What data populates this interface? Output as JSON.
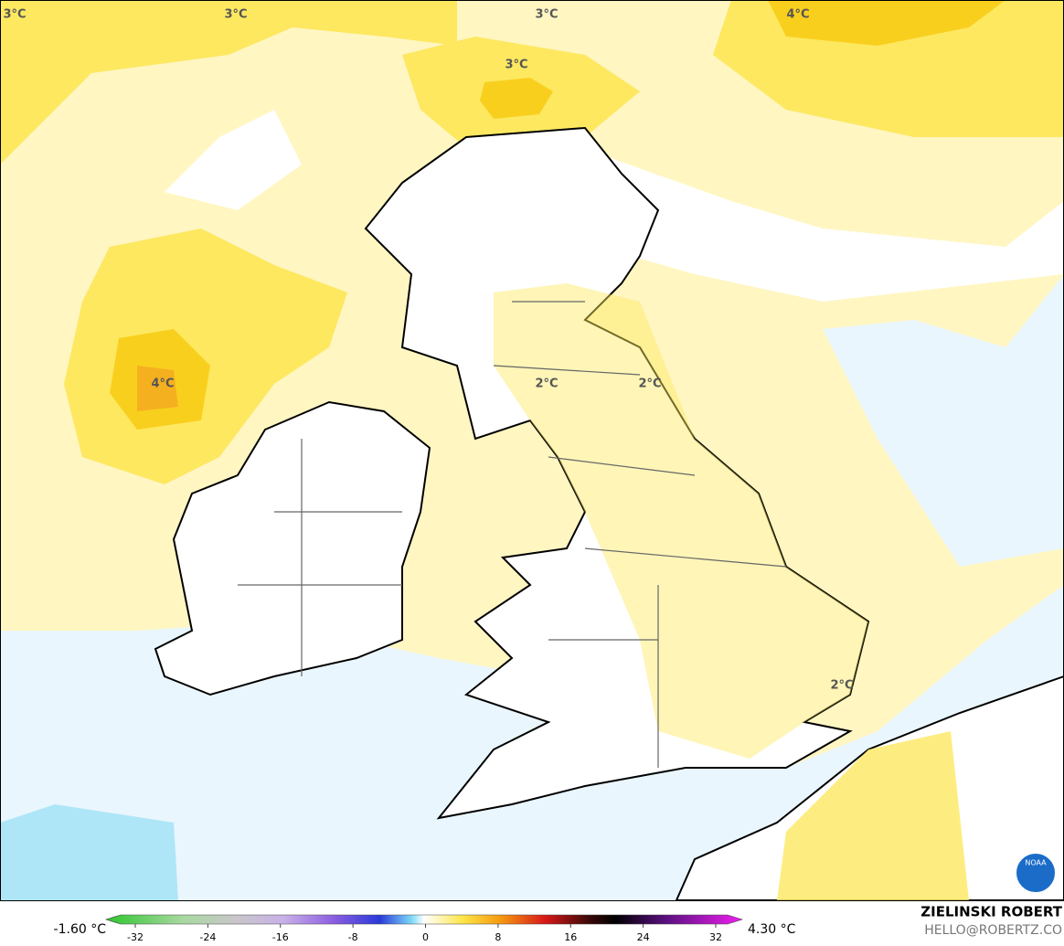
{
  "map": {
    "contour_labels": [
      "3°C",
      "3°C",
      "3°C",
      "3°C",
      "4°C",
      "4°C",
      "2°C",
      "2°C",
      "2°C"
    ],
    "logo": "NOAA"
  },
  "colorbar": {
    "min_label": "-1.60 °C",
    "max_label": "4.30 °C",
    "ticks": [
      -32,
      -24,
      -16,
      -8,
      0,
      8,
      16,
      24,
      32
    ]
  },
  "credit": {
    "name": "ZIELINSKI ROBERT",
    "email": "HELLO@ROBERTZ.CO"
  }
}
